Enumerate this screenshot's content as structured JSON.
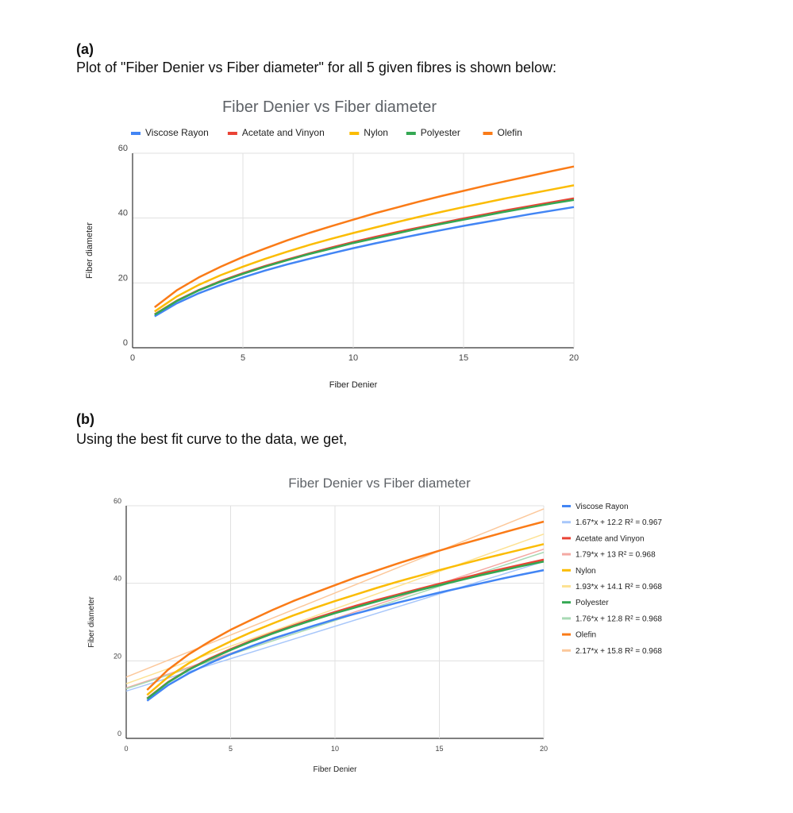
{
  "section_a": {
    "heading": "(a)",
    "text": "Plot of \"Fiber Denier vs Fiber diameter\" for all 5 given fibres is shown below:"
  },
  "section_b": {
    "heading": "(b)",
    "text": "Using the best fit curve to the data, we get,"
  },
  "chart_data": [
    {
      "type": "line",
      "title": "Fiber Denier vs Fiber diameter",
      "xlabel": "Fiber Denier",
      "ylabel": "Fiber diameter",
      "xlim": [
        0,
        20
      ],
      "ylim": [
        0,
        60
      ],
      "xticks": [
        "0",
        "5",
        "10",
        "15",
        "20"
      ],
      "yticks": [
        "0",
        "20",
        "40",
        "60"
      ],
      "grid": true,
      "legend_position": "top",
      "x": [
        1,
        2,
        3,
        4,
        5,
        6,
        7,
        8,
        9,
        10,
        11,
        12,
        13,
        14,
        15,
        16,
        17,
        18,
        19,
        20
      ],
      "series": [
        {
          "name": "Viscose Rayon",
          "color": "#4285f4",
          "values": [
            9.7,
            13.7,
            16.8,
            19.4,
            21.7,
            23.8,
            25.7,
            27.4,
            29.1,
            30.7,
            32.2,
            33.6,
            35.0,
            36.3,
            37.6,
            38.8,
            40.0,
            41.2,
            42.3,
            43.4
          ]
        },
        {
          "name": "Acetate and Vinyon",
          "color": "#ea4335",
          "values": [
            10.3,
            14.5,
            17.8,
            20.6,
            23.0,
            25.2,
            27.2,
            29.1,
            30.9,
            32.6,
            34.2,
            35.7,
            37.1,
            38.5,
            39.9,
            41.2,
            42.5,
            43.7,
            44.9,
            46.1
          ]
        },
        {
          "name": "Nylon",
          "color": "#fbbc04",
          "values": [
            11.2,
            15.8,
            19.4,
            22.4,
            25.0,
            27.4,
            29.6,
            31.7,
            33.6,
            35.4,
            37.1,
            38.8,
            40.4,
            41.9,
            43.4,
            44.8,
            46.2,
            47.5,
            48.8,
            50.1
          ]
        },
        {
          "name": "Polyester",
          "color": "#34a853",
          "values": [
            10.2,
            14.4,
            17.7,
            20.4,
            22.8,
            25.0,
            27.0,
            28.9,
            30.6,
            32.3,
            33.8,
            35.3,
            36.8,
            38.2,
            39.5,
            40.8,
            42.1,
            43.3,
            44.5,
            45.6
          ]
        },
        {
          "name": "Olefin",
          "color": "#fa7b17",
          "values": [
            12.5,
            17.7,
            21.7,
            25.0,
            28.0,
            30.6,
            33.1,
            35.4,
            37.5,
            39.5,
            41.5,
            43.3,
            45.1,
            46.8,
            48.4,
            50.0,
            51.5,
            53.0,
            54.5,
            55.9
          ]
        }
      ]
    },
    {
      "type": "line",
      "title": "Fiber Denier vs Fiber diameter",
      "xlabel": "Fiber Denier",
      "ylabel": "Fiber diameter",
      "xlim": [
        0,
        20
      ],
      "ylim": [
        0,
        60
      ],
      "xticks": [
        "0",
        "5",
        "10",
        "15",
        "20"
      ],
      "yticks": [
        "0",
        "20",
        "40",
        "60"
      ],
      "grid": true,
      "legend_position": "right",
      "x": [
        1,
        2,
        3,
        4,
        5,
        6,
        7,
        8,
        9,
        10,
        11,
        12,
        13,
        14,
        15,
        16,
        17,
        18,
        19,
        20
      ],
      "series": [
        {
          "name": "Viscose Rayon",
          "color": "#4285f4",
          "values": [
            9.7,
            13.7,
            16.8,
            19.4,
            21.7,
            23.8,
            25.7,
            27.4,
            29.1,
            30.7,
            32.2,
            33.6,
            35.0,
            36.3,
            37.6,
            38.8,
            40.0,
            41.2,
            42.3,
            43.4
          ]
        },
        {
          "name": "1.67*x + 12.2 R² = 0.967",
          "color": "#a8c7fa",
          "trendline": true,
          "slope": 1.67,
          "intercept": 12.2
        },
        {
          "name": "Acetate and Vinyon",
          "color": "#ea4335",
          "values": [
            10.3,
            14.5,
            17.8,
            20.6,
            23.0,
            25.2,
            27.2,
            29.1,
            30.9,
            32.6,
            34.2,
            35.7,
            37.1,
            38.5,
            39.9,
            41.2,
            42.5,
            43.7,
            44.9,
            46.1
          ]
        },
        {
          "name": "1.79*x + 13 R² = 0.968",
          "color": "#f4a9a3",
          "trendline": true,
          "slope": 1.79,
          "intercept": 13
        },
        {
          "name": "Nylon",
          "color": "#fbbc04",
          "values": [
            11.2,
            15.8,
            19.4,
            22.4,
            25.0,
            27.4,
            29.6,
            31.7,
            33.6,
            35.4,
            37.1,
            38.8,
            40.4,
            41.9,
            43.4,
            44.8,
            46.2,
            47.5,
            48.8,
            50.1
          ]
        },
        {
          "name": "1.93*x + 14.1 R² = 0.968",
          "color": "#fde293",
          "trendline": true,
          "slope": 1.93,
          "intercept": 14.1
        },
        {
          "name": "Polyester",
          "color": "#34a853",
          "values": [
            10.2,
            14.4,
            17.7,
            20.4,
            22.8,
            25.0,
            27.0,
            28.9,
            30.6,
            32.3,
            33.8,
            35.3,
            36.8,
            38.2,
            39.5,
            40.8,
            42.1,
            43.3,
            44.5,
            45.6
          ]
        },
        {
          "name": "1.76*x + 12.8 R² = 0.968",
          "color": "#a8dab5",
          "trendline": true,
          "slope": 1.76,
          "intercept": 12.8
        },
        {
          "name": "Olefin",
          "color": "#fa7b17",
          "values": [
            12.5,
            17.7,
            21.7,
            25.0,
            28.0,
            30.6,
            33.1,
            35.4,
            37.5,
            39.5,
            41.5,
            43.3,
            45.1,
            46.8,
            48.4,
            50.0,
            51.5,
            53.0,
            54.5,
            55.9
          ]
        },
        {
          "name": "2.17*x + 15.8 R² = 0.968",
          "color": "#fcc89b",
          "trendline": true,
          "slope": 2.17,
          "intercept": 15.8
        }
      ]
    }
  ]
}
